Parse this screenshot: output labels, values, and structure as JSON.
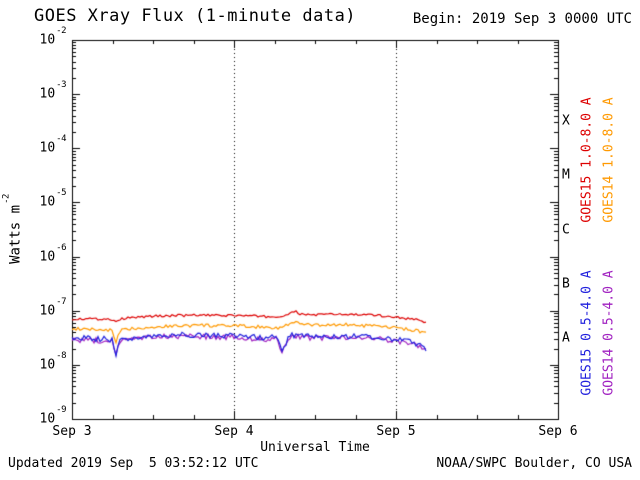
{
  "header": {
    "begin": "Begin: 2019 Sep 3 0000 UTC"
  },
  "footer": {
    "updated": "Updated 2019 Sep  5 03:52:12 UTC",
    "credit": "NOAA/SWPC Boulder, CO USA"
  },
  "chart_data": {
    "type": "line",
    "title": "GOES Xray Flux (1-minute data)",
    "xlabel": "Universal Time",
    "ylabel_base": "Watts m",
    "ylabel_exponent": "-2",
    "y_tick_base": "10",
    "y_tick_exponents": [
      "-2",
      "-3",
      "-4",
      "-5",
      "-6",
      "-7",
      "-8",
      "-9"
    ],
    "x_tick_labels": [
      "Sep 3",
      "Sep 4",
      "Sep 5",
      "Sep 6"
    ],
    "flare_class_labels": [
      "X",
      "M",
      "C",
      "B",
      "A"
    ],
    "x_unit": "days since 2019 Sep 3 0000 UTC",
    "x_range_days": [
      0,
      3
    ],
    "y_scale": "log",
    "y_range": [
      1e-09,
      0.01
    ],
    "grid_dashed_days": [
      1,
      2
    ],
    "x": [
      0.0,
      0.05,
      0.1,
      0.15,
      0.2,
      0.25,
      0.27,
      0.29,
      0.32,
      0.4,
      0.5,
      0.6,
      0.7,
      0.8,
      0.9,
      1.0,
      1.1,
      1.2,
      1.26,
      1.3,
      1.34,
      1.38,
      1.41,
      1.5,
      1.6,
      1.7,
      1.8,
      1.9,
      2.0,
      2.05,
      2.1,
      2.14,
      2.17,
      2.19
    ],
    "series": [
      {
        "name": "GOES15 1.0-8.0 A",
        "color": "#dd0000",
        "jitter_log": 0.022,
        "values": [
          7e-08,
          7.1e-08,
          7.2e-08,
          7e-08,
          7.1e-08,
          6.9e-08,
          6.3e-08,
          6.8e-08,
          7.2e-08,
          7.6e-08,
          7.9e-08,
          8.1e-08,
          8.2e-08,
          8.3e-08,
          8.1e-08,
          8.2e-08,
          8e-08,
          7.8e-08,
          7.6e-08,
          7.9e-08,
          8.8e-08,
          9.6e-08,
          8.6e-08,
          8.4e-08,
          8.6e-08,
          8.5e-08,
          8.4e-08,
          8.1e-08,
          7.6e-08,
          7.3e-08,
          7e-08,
          6.8e-08,
          6.4e-08,
          6e-08
        ]
      },
      {
        "name": "GOES14 1.0-8.0 A",
        "color": "#ff9900",
        "jitter_log": 0.03,
        "values": [
          4.5e-08,
          4.6e-08,
          4.6e-08,
          4.4e-08,
          4.5e-08,
          4.3e-08,
          2.3e-08,
          4e-08,
          4.5e-08,
          4.8e-08,
          5e-08,
          5.2e-08,
          5.3e-08,
          5.4e-08,
          5.2e-08,
          5.3e-08,
          5.1e-08,
          5e-08,
          4.8e-08,
          5e-08,
          5.6e-08,
          6.4e-08,
          5.6e-08,
          5.4e-08,
          5.5e-08,
          5.5e-08,
          5.3e-08,
          5.1e-08,
          4.8e-08,
          4.6e-08,
          4.4e-08,
          4.2e-08,
          4e-08,
          3.8e-08
        ]
      },
      {
        "name": "GOES15 0.5-4.0 A",
        "color": "#2020dd",
        "jitter_log": 0.05,
        "values": [
          3e-08,
          3.1e-08,
          3.1e-08,
          3e-08,
          3e-08,
          2.9e-08,
          1.5e-08,
          2.8e-08,
          3e-08,
          3.2e-08,
          3.4e-08,
          3.5e-08,
          3.6e-08,
          3.6e-08,
          3.4e-08,
          3.5e-08,
          3.3e-08,
          3.2e-08,
          3.2e-08,
          1.8e-08,
          3.4e-08,
          3.6e-08,
          3.4e-08,
          3.3e-08,
          3.4e-08,
          3.4e-08,
          3.3e-08,
          3.2e-08,
          3e-08,
          2.8e-08,
          2.6e-08,
          2.4e-08,
          2.2e-08,
          1.9e-08
        ]
      },
      {
        "name": "GOES14 0.5-4.0 A",
        "color": "#a020c0",
        "jitter_log": 0.05,
        "values": [
          2.8e-08,
          2.9e-08,
          2.9e-08,
          2.8e-08,
          2.8e-08,
          2.7e-08,
          1.4e-08,
          2.6e-08,
          2.8e-08,
          3e-08,
          3.2e-08,
          3.3e-08,
          3.4e-08,
          3.4e-08,
          3.2e-08,
          3.3e-08,
          3.1e-08,
          3e-08,
          3e-08,
          1.7e-08,
          3.2e-08,
          3.4e-08,
          3.2e-08,
          3.1e-08,
          3.2e-08,
          3.2e-08,
          3.1e-08,
          3e-08,
          2.8e-08,
          2.6e-08,
          2.4e-08,
          2.2e-08,
          2e-08,
          1.8e-08
        ]
      }
    ]
  }
}
